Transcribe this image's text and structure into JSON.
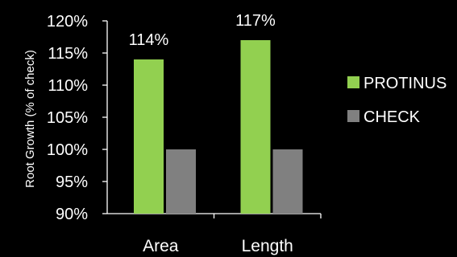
{
  "chart_data": {
    "type": "bar",
    "categories": [
      "Area",
      "Length"
    ],
    "series": [
      {
        "name": "PROTINUS",
        "values": [
          114,
          117
        ],
        "color": "#92d050"
      },
      {
        "name": "CHECK",
        "values": [
          100,
          100
        ],
        "color": "#808080"
      }
    ],
    "data_labels": [
      "114%",
      "117%"
    ],
    "ylabel": "Root  Growth (% of check)",
    "xlabel": "",
    "ylim": [
      90,
      120
    ],
    "yticks": [
      90,
      95,
      100,
      105,
      110,
      115,
      120
    ],
    "ytick_labels": [
      "90%",
      "95%",
      "100%",
      "105%",
      "110%",
      "115%",
      "120%"
    ],
    "legend_position": "right",
    "grid": false,
    "background": "#000000",
    "axis_color": "#ffffff"
  }
}
